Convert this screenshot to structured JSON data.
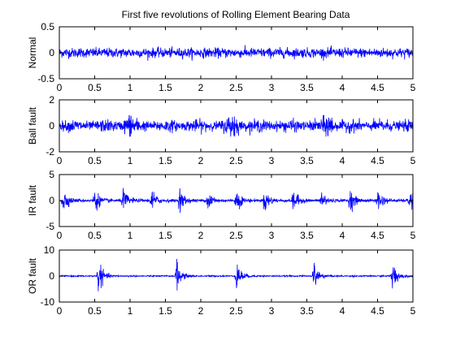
{
  "figure": {
    "title": "First five revolutions of Rolling Element Bearing Data",
    "background": "#ffffff",
    "line_color": "#0000ff"
  },
  "chart_data": [
    {
      "type": "line",
      "ylabel": "Normal",
      "xlim": [
        0,
        5
      ],
      "ylim": [
        -0.5,
        0.5
      ],
      "xticks": [
        0,
        0.5,
        1,
        1.5,
        2,
        2.5,
        3,
        3.5,
        4,
        4.5,
        5
      ],
      "xtick_labels": [
        "0",
        "0.5",
        "1",
        "1.5",
        "2",
        "2.5",
        "3",
        "3.5",
        "4",
        "4.5",
        "5"
      ],
      "yticks": [
        -0.5,
        0,
        0.5
      ],
      "ytick_labels": [
        "-0.5",
        "0",
        "0.5"
      ],
      "signal": {
        "kind": "broadband",
        "rms": 0.045,
        "peak": 0.14
      },
      "grid": false
    },
    {
      "type": "line",
      "ylabel": "Ball fault",
      "xlim": [
        0,
        5
      ],
      "ylim": [
        -2,
        2
      ],
      "xticks": [
        0,
        0.5,
        1,
        1.5,
        2,
        2.5,
        3,
        3.5,
        4,
        4.5,
        5
      ],
      "xtick_labels": [
        "0",
        "0.5",
        "1",
        "1.5",
        "2",
        "2.5",
        "3",
        "3.5",
        "4",
        "4.5",
        "5"
      ],
      "yticks": [
        -2,
        0,
        2
      ],
      "ytick_labels": [
        "-2",
        "0",
        "2"
      ],
      "signal": {
        "kind": "modulated",
        "rms": 0.18,
        "peak": 0.75,
        "burst_times": [
          1.0,
          2.45,
          3.8
        ]
      },
      "grid": false
    },
    {
      "type": "line",
      "ylabel": "IR fault",
      "xlim": [
        0,
        5
      ],
      "ylim": [
        -5,
        5
      ],
      "xticks": [
        0,
        0.5,
        1,
        1.5,
        2,
        2.5,
        3,
        3.5,
        4,
        4.5,
        5
      ],
      "xtick_labels": [
        "0",
        "0.5",
        "1",
        "1.5",
        "2",
        "2.5",
        "3",
        "3.5",
        "4",
        "4.5",
        "5"
      ],
      "yticks": [
        -5,
        0,
        5
      ],
      "ytick_labels": [
        "-5",
        "0",
        "5"
      ],
      "signal": {
        "kind": "impulsive",
        "rms": 0.25,
        "peak": 2.2,
        "burst_times": [
          0.05,
          0.5,
          0.9,
          1.3,
          1.7,
          2.1,
          2.5,
          2.9,
          3.3,
          3.7,
          4.1,
          4.5,
          4.95
        ]
      },
      "grid": false
    },
    {
      "type": "line",
      "ylabel": "OR fault",
      "xlim": [
        0,
        5
      ],
      "ylim": [
        -10,
        10
      ],
      "xticks": [
        0,
        0.5,
        1,
        1.5,
        2,
        2.5,
        3,
        3.5,
        4,
        4.5,
        5
      ],
      "xtick_labels": [
        "0",
        "0.5",
        "1",
        "1.5",
        "2",
        "2.5",
        "3",
        "3.5",
        "4",
        "4.5",
        "5"
      ],
      "yticks": [
        -10,
        0,
        10
      ],
      "ytick_labels": [
        "-10",
        "0",
        "10"
      ],
      "signal": {
        "kind": "impulsive",
        "rms": 0.25,
        "peak": 6.0,
        "burst_times": [
          0.55,
          1.65,
          2.5,
          3.6,
          4.7
        ]
      },
      "grid": false
    }
  ]
}
